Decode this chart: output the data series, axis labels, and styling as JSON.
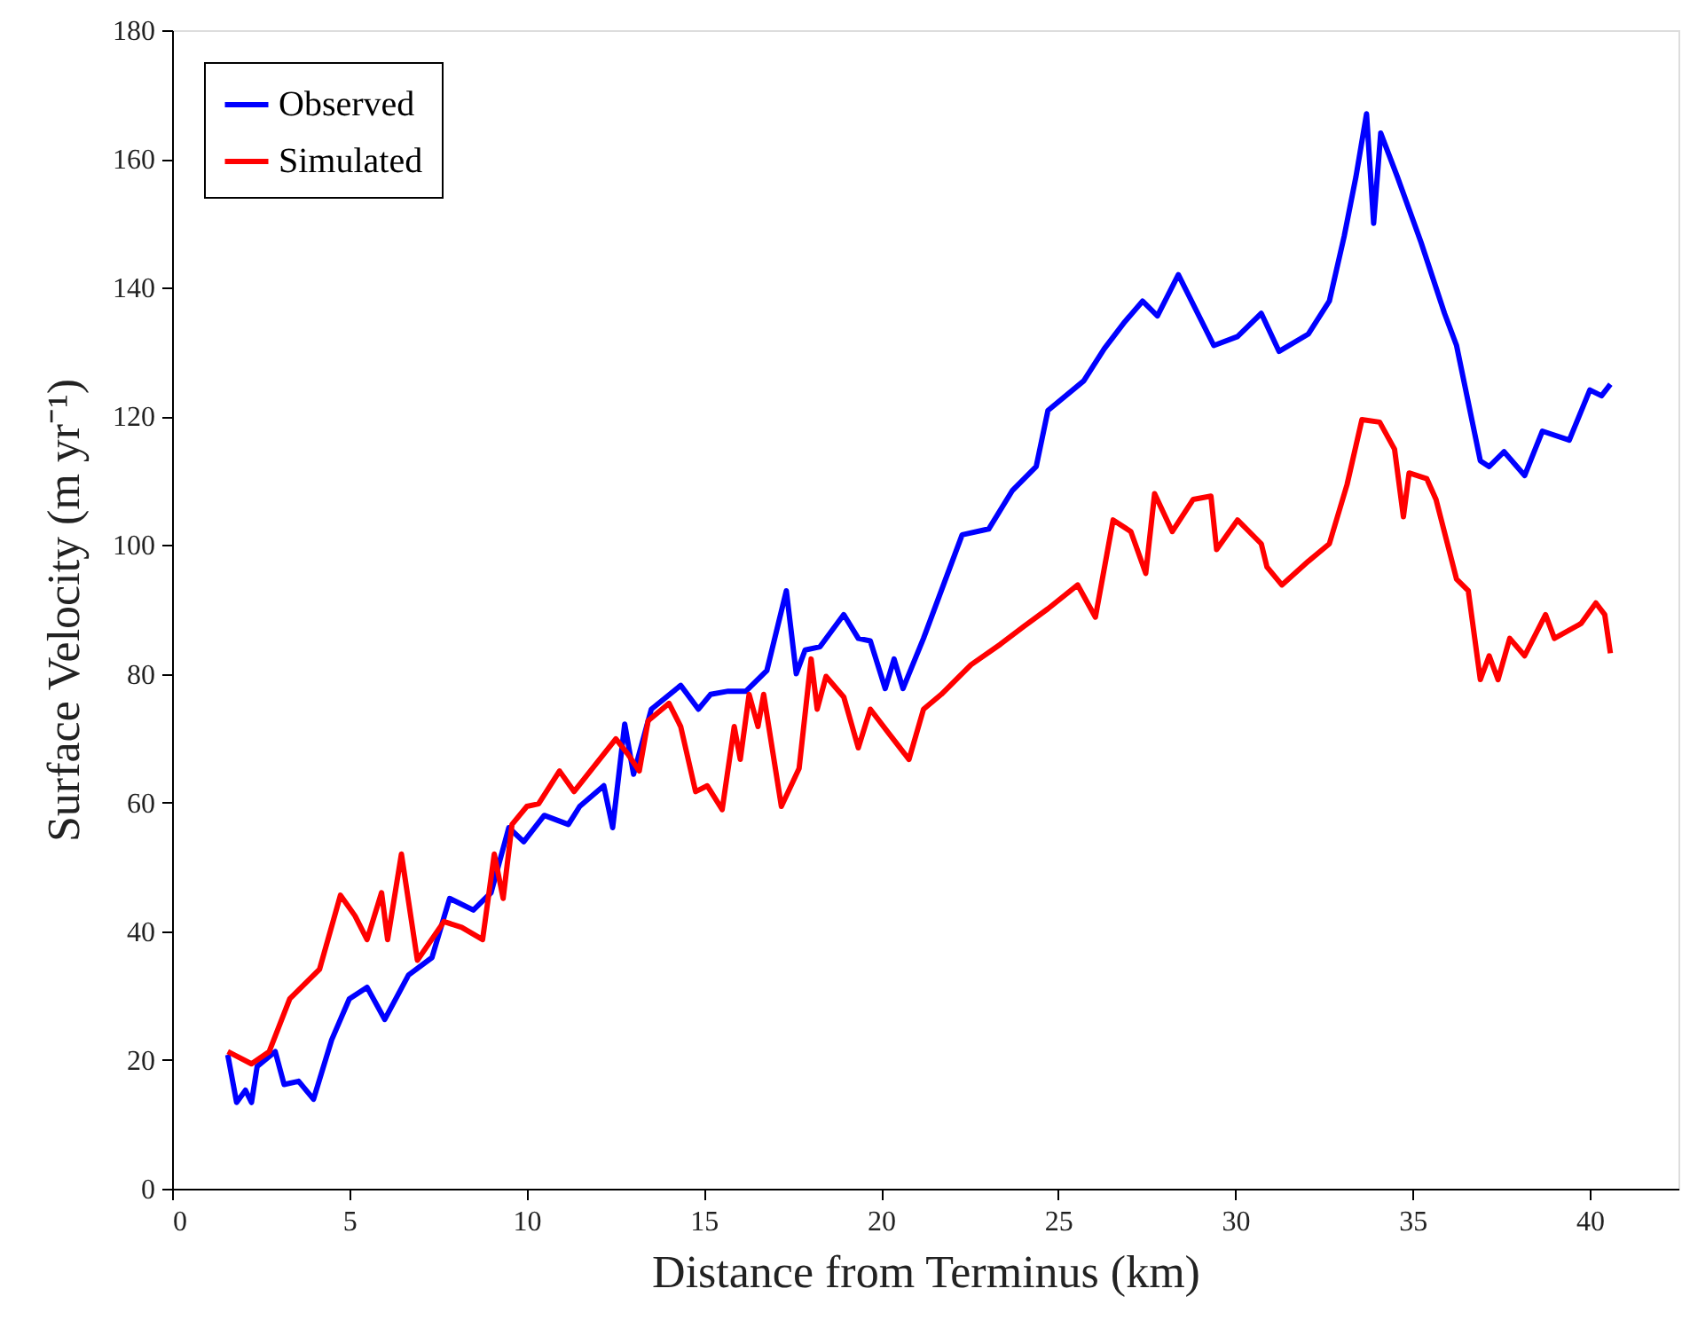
{
  "chart_data": {
    "type": "line",
    "xlabel": "Distance from Terminus (km)",
    "ylabel": "Surface Velocity (m yr⁻¹)",
    "xlim": [
      0,
      42.5
    ],
    "xticks": [
      0,
      5,
      10,
      15,
      20,
      25,
      30,
      35,
      40
    ],
    "ylim": [
      0,
      180
    ],
    "yticks": [
      0,
      20,
      40,
      60,
      80,
      100,
      120,
      140,
      160,
      180
    ],
    "grid": false,
    "legend": "top left",
    "line_style": "solid",
    "marker": "none",
    "series": [
      {
        "name": "Observed",
        "color": "#0000ff",
        "x": [
          1.57,
          1.82,
          2.07,
          2.24,
          2.4,
          2.91,
          3.16,
          3.57,
          3.99,
          4.5,
          5.0,
          5.5,
          6.0,
          6.67,
          7.33,
          7.83,
          8.5,
          9.0,
          9.5,
          9.92,
          10.5,
          11.18,
          11.5,
          12.18,
          12.43,
          12.77,
          13.02,
          13.52,
          14.35,
          14.85,
          15.19,
          15.69,
          16.19,
          16.78,
          17.33,
          17.61,
          17.86,
          18.28,
          18.95,
          19.36,
          19.7,
          20.12,
          20.37,
          20.62,
          21.2,
          22.29,
          23.04,
          23.71,
          24.38,
          24.71,
          25.72,
          26.3,
          26.88,
          27.38,
          27.8,
          28.39,
          29.39,
          30.06,
          30.73,
          31.23,
          32.06,
          32.65,
          33.07,
          33.4,
          33.7,
          33.9,
          34.1,
          34.57,
          35.24,
          35.9,
          36.24,
          36.91,
          37.16,
          37.58,
          38.16,
          38.66,
          39.42,
          40.0,
          40.33,
          40.58
        ],
        "values": [
          20.8,
          13.4,
          15.3,
          13.4,
          19,
          21.3,
          16.2,
          16.7,
          13.9,
          23.1,
          29.5,
          31.3,
          26.3,
          33.2,
          35.9,
          45.1,
          43.3,
          46,
          56.1,
          53.9,
          58,
          56.6,
          59.4,
          62.6,
          56.1,
          72.2,
          64.4,
          74.5,
          78.2,
          74.5,
          76.8,
          77.3,
          77.3,
          80.5,
          92.9,
          80,
          83.7,
          84.2,
          89.2,
          85.5,
          85.1,
          77.7,
          82.3,
          77.7,
          85.5,
          101.6,
          102.5,
          108.5,
          112.2,
          120.9,
          125.5,
          130.5,
          134.7,
          137.9,
          135.6,
          142,
          131,
          132.4,
          136,
          130.1,
          132.8,
          137.9,
          148,
          157.2,
          167,
          150,
          164,
          157.2,
          147,
          136,
          131,
          113.1,
          112.2,
          114.5,
          110.8,
          117.7,
          116.3,
          124.1,
          123.2,
          125
        ]
      },
      {
        "name": "Simulated",
        "color": "#ff0000",
        "x": [
          1.57,
          2.24,
          2.74,
          3.32,
          4.16,
          4.75,
          5.16,
          5.5,
          5.91,
          6.08,
          6.47,
          6.92,
          7.67,
          8.17,
          8.76,
          9.09,
          9.34,
          9.59,
          10.01,
          10.34,
          10.93,
          11.34,
          11.93,
          12.52,
          12.85,
          13.18,
          13.43,
          14.02,
          14.35,
          14.77,
          15.1,
          15.52,
          15.86,
          16.03,
          16.28,
          16.53,
          16.69,
          17.19,
          17.69,
          18.03,
          18.2,
          18.45,
          18.95,
          19.36,
          19.7,
          20.2,
          20.79,
          21.2,
          21.7,
          22.54,
          23.37,
          24.04,
          24.71,
          25.55,
          26.05,
          26.55,
          27.05,
          27.47,
          27.72,
          28.22,
          28.81,
          29.31,
          29.47,
          30.06,
          30.73,
          30.89,
          31.31,
          32.06,
          32.65,
          33.15,
          33.57,
          34.07,
          34.49,
          34.74,
          34.9,
          35.4,
          35.66,
          36.24,
          36.57,
          36.91,
          37.16,
          37.41,
          37.74,
          38.16,
          38.75,
          39.0,
          39.75,
          40.17,
          40.42,
          40.58
        ],
        "values": [
          21.3,
          19.4,
          21.3,
          29.5,
          34.1,
          45.6,
          42.4,
          38.7,
          46,
          38.7,
          52,
          35.5,
          41.5,
          40.6,
          38.7,
          52,
          45.1,
          56.6,
          59.4,
          59.8,
          64.9,
          61.7,
          65.8,
          69.9,
          67.6,
          64.9,
          72.7,
          75.4,
          71.8,
          61.7,
          62.6,
          58.9,
          71.8,
          66.7,
          76.8,
          71.8,
          76.8,
          59.4,
          65.3,
          82.3,
          74.5,
          79.6,
          76.4,
          68.5,
          74.5,
          70.9,
          66.7,
          74.5,
          76.8,
          81.4,
          84.6,
          87.4,
          90.1,
          93.8,
          88.8,
          103.9,
          102.1,
          95.6,
          108,
          102.1,
          107.1,
          107.6,
          99.3,
          103.9,
          100.2,
          96.6,
          93.8,
          97.5,
          100.2,
          109.4,
          119.5,
          119.1,
          114.9,
          104.4,
          111.2,
          110.3,
          107.1,
          94.7,
          92.9,
          79.1,
          82.8,
          79.1,
          85.5,
          82.8,
          89.2,
          85.5,
          87.8,
          91,
          89.2,
          83.2
        ]
      }
    ]
  }
}
